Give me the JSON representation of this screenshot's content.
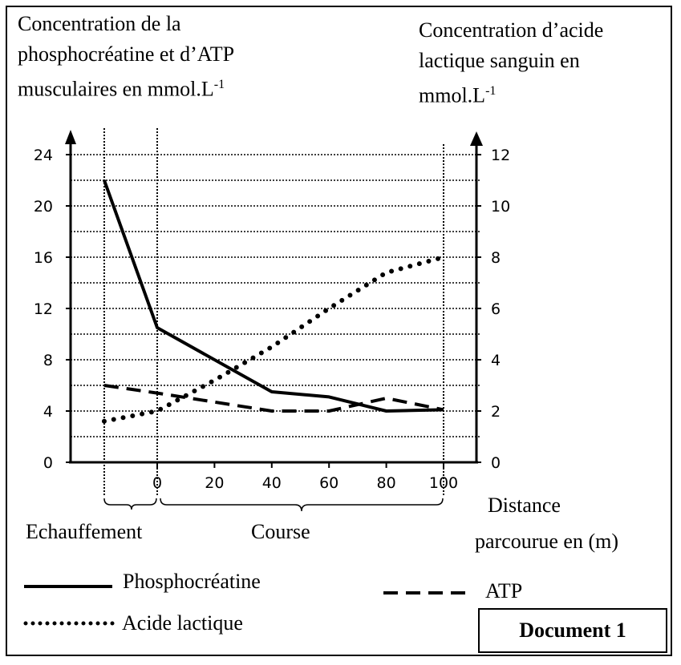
{
  "chart_data": {
    "type": "line",
    "title": "Document 1",
    "ylabel_left": [
      "Concentration de la",
      "phosphocréatine et d’ATP",
      "musculaires en mmol.L-1"
    ],
    "ylabel_right": [
      "Concentration d’acide",
      "lactique sanguin en",
      "mmol.L-1"
    ],
    "xlabel": [
      "Distance",
      "parcourue en (m)"
    ],
    "phase_labels": [
      "Echauffement",
      "Course"
    ],
    "x_ticks": [
      0,
      20,
      40,
      60,
      80,
      100
    ],
    "y_left_ticks": [
      0,
      4,
      8,
      12,
      16,
      20,
      24
    ],
    "y_right_ticks": [
      0,
      2,
      4,
      6,
      8,
      10,
      12
    ],
    "ylim_left": [
      0,
      24
    ],
    "ylim_right": [
      0,
      12
    ],
    "xlim": [
      -18.5,
      100
    ],
    "grid": true,
    "series": [
      {
        "name": "Phosphocréatine",
        "axis": "left",
        "style": "solid",
        "x": [
          -18.5,
          0,
          40,
          60,
          80,
          100
        ],
        "y": [
          22,
          10.5,
          5.5,
          5.1,
          4,
          4.1
        ]
      },
      {
        "name": "ATP",
        "axis": "left",
        "style": "dashed",
        "x": [
          -18.5,
          0,
          40,
          60,
          80,
          100
        ],
        "y": [
          6,
          5.4,
          4,
          4,
          5,
          4.1
        ]
      },
      {
        "name": "Acide lactique",
        "axis": "right",
        "style": "dotted",
        "x": [
          -18.5,
          0,
          20,
          40,
          60,
          80,
          100
        ],
        "y": [
          1.6,
          2,
          3.2,
          4.5,
          6,
          7.4,
          8
        ]
      }
    ]
  }
}
